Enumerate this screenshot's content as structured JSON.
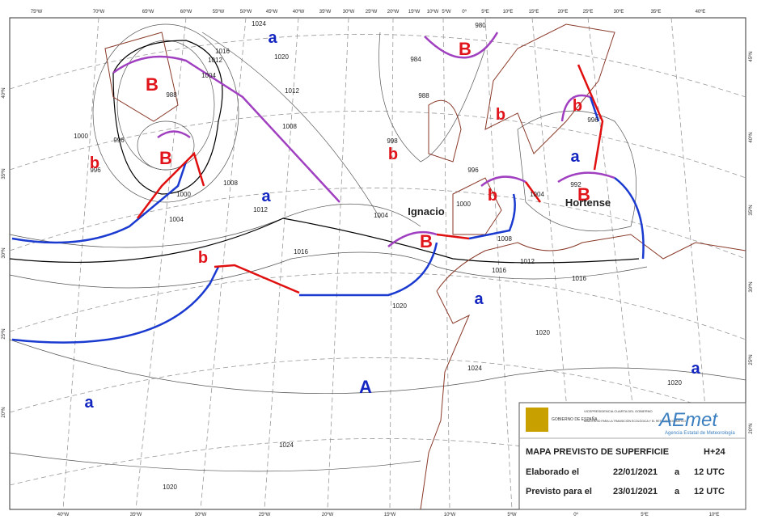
{
  "map": {
    "top_longitudes": [
      "75ºW",
      "70ºW",
      "65ºW",
      "60ºW",
      "55ºW",
      "50ºW",
      "45ºW",
      "40ºW",
      "35ºW",
      "30ºW",
      "25ºW",
      "20ºW",
      "15ºW",
      "10ºW",
      "5ºW",
      "0º",
      "5ºE",
      "10ºE",
      "15ºE",
      "20ºE",
      "25ºE",
      "30ºE",
      "35ºE",
      "40ºE"
    ],
    "bottom_longitudes": [
      "40ºW",
      "35ºW",
      "30ºW",
      "25ºW",
      "20ºW",
      "15ºW",
      "10ºW",
      "5ºW",
      "0º",
      "5ºE",
      "10ºE"
    ],
    "left_latitudes": [
      "40ºN",
      "35ºN",
      "30ºN",
      "25ºN",
      "20ºN"
    ],
    "right_latitudes": [
      "45ºN",
      "40ºN",
      "35ºN",
      "30ºN",
      "25ºN",
      "20ºN"
    ],
    "centers": [
      "B",
      "B",
      "B",
      "B",
      "B",
      "A",
      "a",
      "a",
      "a",
      "a",
      "a",
      "a",
      "b",
      "b",
      "b",
      "b",
      "b",
      "b"
    ],
    "storm_names": [
      "Ignacio",
      "Hortense"
    ],
    "isobar_labels": [
      "1024",
      "1020",
      "1016",
      "1012",
      "1004",
      "988",
      "996",
      "1000",
      "996",
      "1012",
      "1008",
      "1008",
      "1012",
      "1004",
      "1000",
      "1016",
      "1020",
      "1004",
      "1000",
      "1008",
      "1012",
      "1016",
      "1016",
      "1020",
      "1024",
      "1020",
      "1024",
      "1020",
      "988",
      "984",
      "980",
      "996",
      "992",
      "996",
      "1004",
      "998"
    ]
  },
  "legend": {
    "gov_line": "GOBIERNO DE ESPAÑA",
    "vice": "VICEPRESIDENCIA CUARTA DEL GOBIERNO",
    "ministry": "MINISTERIO PARA LA TRANSICIÓN ECOLÓGICA Y EL RETO DEMOGRÁFICO",
    "agency_logo": "AEmet",
    "agency_name": "Agencia Estatal de Meteorología",
    "title": "MAPA PREVISTO DE SUPERFICIE",
    "horizon": "H+24",
    "made_label": "Elaborado el",
    "made_date": "22/01/2021",
    "made_at": "a",
    "made_time": "12 UTC",
    "valid_label": "Previsto para el",
    "valid_date": "23/01/2021",
    "valid_at": "a",
    "valid_time": "12 UTC"
  }
}
